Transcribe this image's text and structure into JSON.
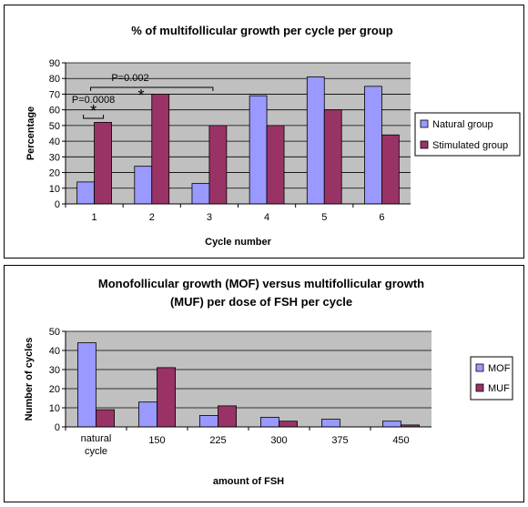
{
  "chart_data": [
    {
      "type": "bar",
      "title": "% of multifollicular growth per cycle per group",
      "xlabel": "Cycle number",
      "ylabel": "Percentage",
      "categories": [
        "1",
        "2",
        "3",
        "4",
        "5",
        "6"
      ],
      "ylim": [
        0,
        90
      ],
      "yticks": [
        0,
        10,
        20,
        30,
        40,
        50,
        60,
        70,
        80,
        90
      ],
      "grid": true,
      "legend_position": "right",
      "series": [
        {
          "name": "Natural group",
          "color": "#9999ff",
          "values": [
            14,
            24,
            13,
            69,
            81,
            75
          ]
        },
        {
          "name": "Stimulated group",
          "color": "#993366",
          "values": [
            52,
            70,
            50,
            50,
            60,
            44
          ]
        }
      ],
      "annotations": [
        {
          "text": "P=0.0008",
          "from": "1",
          "to": "1",
          "star": "*"
        },
        {
          "text": "P=0.002",
          "from": "1",
          "to": "3",
          "star": "*"
        }
      ]
    },
    {
      "type": "bar",
      "title": "Monofollicular growth (MOF) versus multifollicular growth (MUF) per dose of FSH per cycle",
      "title_lines": [
        "Monofollicular growth (MOF) versus multifollicular growth",
        "(MUF) per dose of FSH per cycle"
      ],
      "xlabel": "amount of FSH",
      "ylabel": "Number of cycles",
      "categories": [
        "natural cycle",
        "150",
        "225",
        "300",
        "375",
        "450"
      ],
      "ylim": [
        0,
        50
      ],
      "yticks": [
        0,
        10,
        20,
        30,
        40,
        50
      ],
      "grid": true,
      "legend_position": "right",
      "series": [
        {
          "name": "MOF",
          "color": "#9999ff",
          "values": [
            44,
            13,
            6,
            5,
            4,
            3
          ]
        },
        {
          "name": "MUF",
          "color": "#993366",
          "values": [
            9,
            31,
            11,
            3,
            0,
            1
          ]
        }
      ]
    }
  ]
}
